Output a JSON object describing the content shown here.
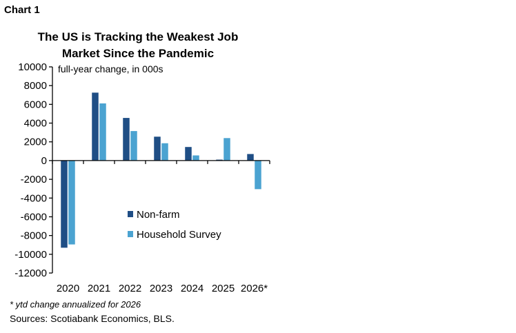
{
  "chart_label": "Chart 1",
  "footnote": "* ytd change annualized for 2026",
  "sources": "Sources: Scotiabank Economics, BLS.",
  "colors": {
    "non_farm": "#1f4e85",
    "household": "#4ba3d1",
    "axis": "#000000"
  },
  "chart_data": {
    "type": "bar",
    "title_lines": [
      "The US is Tracking the Weakest Job",
      "Market Since the Pandemic"
    ],
    "ylabel": "full-year change, in 000s",
    "xlabel": "",
    "categories": [
      "2020",
      "2021",
      "2022",
      "2023",
      "2024",
      "2025",
      "2026*"
    ],
    "series": [
      {
        "name": "Non-farm",
        "values": [
          -9300,
          7250,
          4550,
          2550,
          1450,
          100,
          700
        ]
      },
      {
        "name": "Household Survey",
        "values": [
          -8950,
          6100,
          3150,
          1850,
          550,
          2400,
          -3050
        ]
      }
    ],
    "ylim": [
      -12000,
      10000
    ],
    "yticks": [
      10000,
      8000,
      6000,
      4000,
      2000,
      0,
      -2000,
      -4000,
      -6000,
      -8000,
      -10000,
      -12000
    ],
    "legend_position": "lower-middle",
    "grid": false
  }
}
